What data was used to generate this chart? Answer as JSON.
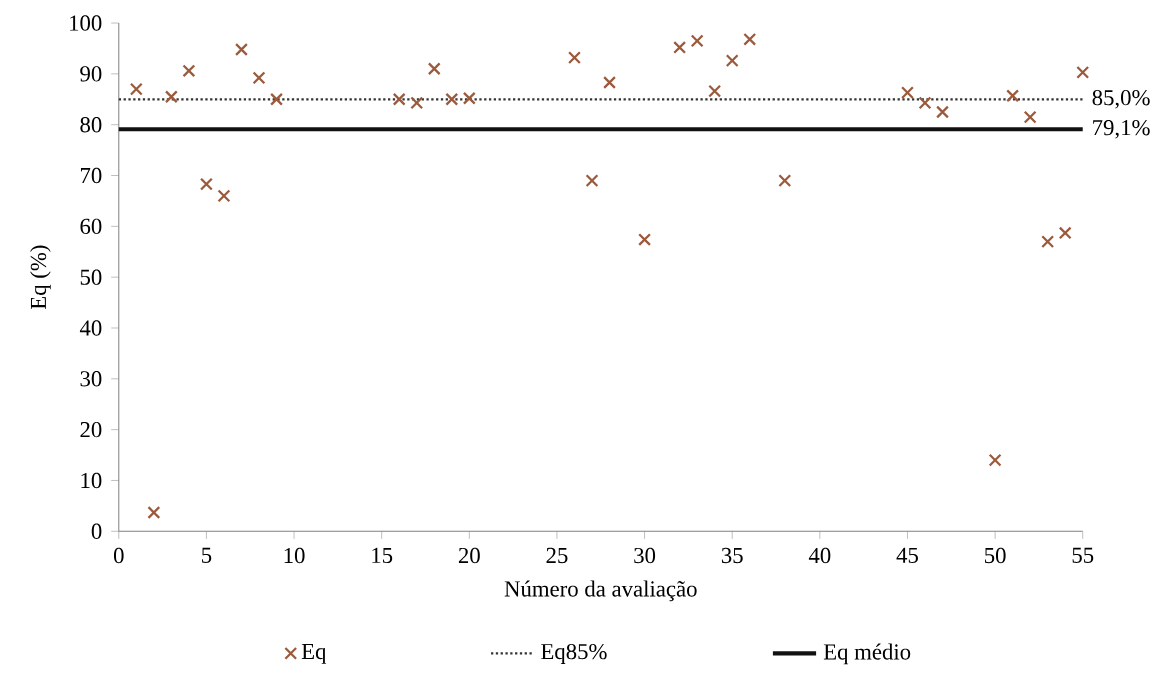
{
  "chart_data": {
    "type": "scatter",
    "xlabel": "Número da avaliação",
    "ylabel": "Eq (%)",
    "xlim": [
      0,
      55
    ],
    "xticks": [
      0,
      5,
      10,
      15,
      20,
      25,
      30,
      35,
      40,
      45,
      50,
      55
    ],
    "ylim": [
      0,
      100
    ],
    "yticks": [
      0,
      10,
      20,
      30,
      40,
      50,
      60,
      70,
      80,
      90,
      100
    ],
    "grid": false,
    "legend": "bottom",
    "series": [
      {
        "name": "Eq",
        "marker": "cross",
        "color": "#9c5a3c",
        "x": [
          1,
          2,
          3,
          4,
          5,
          6,
          7,
          8,
          9,
          16,
          17,
          18,
          19,
          20,
          26,
          27,
          28,
          30,
          32,
          33,
          34,
          35,
          36,
          38,
          45,
          46,
          47,
          50,
          51,
          52,
          53,
          54,
          55
        ],
        "values": [
          87,
          3.7,
          85.5,
          90.6,
          68.3,
          66,
          94.8,
          89.2,
          85,
          85,
          84.3,
          91,
          85,
          85.2,
          93.2,
          69,
          88.3,
          57.4,
          95.2,
          96.5,
          86.6,
          92.6,
          96.8,
          69,
          86.3,
          84.3,
          82.5,
          14,
          85.7,
          81.5,
          57,
          58.7,
          90.3
        ]
      },
      {
        "name": "Eq85%",
        "type": "line",
        "marker": "none",
        "line_style": "dotted",
        "color": "#333333",
        "x": [
          0,
          55
        ],
        "values": [
          85,
          85
        ]
      },
      {
        "name": "Eq médio",
        "type": "line",
        "marker": "none",
        "line_style": "solid",
        "color": "#111111",
        "x": [
          0,
          55
        ],
        "values": [
          79.1,
          79.1
        ]
      }
    ],
    "annotations": [
      {
        "text": "85,0%",
        "x": 55,
        "y": 85
      },
      {
        "text": "79,1%",
        "x": 55,
        "y": 79.1
      }
    ]
  }
}
